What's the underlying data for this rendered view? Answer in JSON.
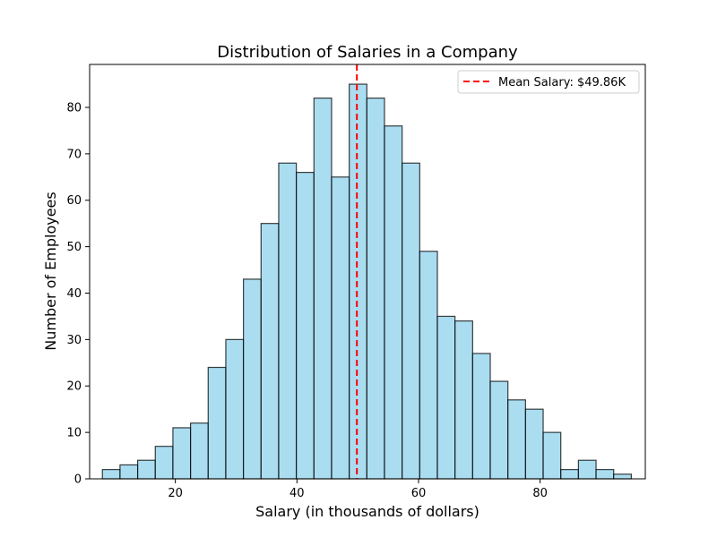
{
  "chart_data": {
    "type": "bar",
    "title": "Distribution of Salaries in a Company",
    "xlabel": "Salary (in thousands of dollars)",
    "ylabel": "Number of Employees",
    "xlim": [
      5.9,
      97.3
    ],
    "ylim": [
      0,
      89.25
    ],
    "x_ticks": [
      20,
      40,
      60,
      80
    ],
    "y_ticks": [
      0,
      10,
      20,
      30,
      40,
      50,
      60,
      70,
      80
    ],
    "grid": false,
    "bins": {
      "start": 8.0,
      "width": 2.9,
      "counts": [
        2,
        3,
        4,
        7,
        11,
        12,
        24,
        30,
        43,
        55,
        68,
        66,
        82,
        65,
        85,
        82,
        76,
        68,
        49,
        35,
        34,
        27,
        21,
        17,
        15,
        10,
        2,
        4,
        2,
        1
      ]
    },
    "bar_color": "#87CEEB",
    "bar_opacity": 0.7,
    "bar_edge_color": "#000000",
    "mean_line": {
      "value": 49.86,
      "color": "#ff0000",
      "style": "dashed",
      "label": "Mean Salary: $49.86K"
    },
    "legend": {
      "placement": "top-right",
      "entries": [
        "Mean Salary: $49.86K"
      ]
    }
  }
}
